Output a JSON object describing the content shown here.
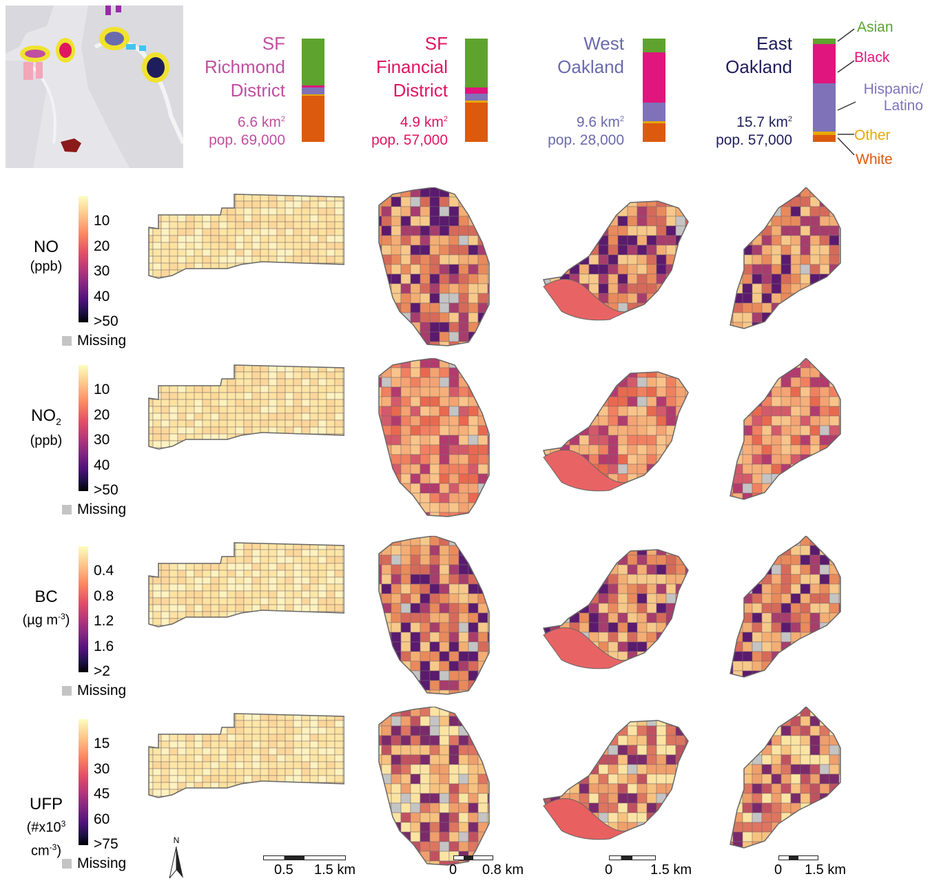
{
  "sites": [
    {
      "name_lines": [
        "SF",
        "Richmond",
        "District"
      ],
      "area": "6.6 km",
      "area_exp": "2",
      "population": "pop. 69,000",
      "color": "#c04fa0",
      "composition": {
        "asian": 0.45,
        "black": 0.02,
        "hispanic": 0.07,
        "other": 0.01,
        "white": 0.45
      }
    },
    {
      "name_lines": [
        "SF",
        "Financial",
        "District"
      ],
      "area": "4.9 km",
      "area_exp": "2",
      "population": "pop. 57,000",
      "color": "#e0155f",
      "composition": {
        "asian": 0.47,
        "black": 0.06,
        "hispanic": 0.07,
        "other": 0.02,
        "white": 0.38
      }
    },
    {
      "name_lines": [
        "West",
        "Oakland"
      ],
      "area": "9.6 km",
      "area_exp": "2",
      "population": "pop. 28,000",
      "color": "#6a6aae",
      "composition": {
        "asian": 0.13,
        "black": 0.49,
        "hispanic": 0.18,
        "other": 0.02,
        "white": 0.18
      }
    },
    {
      "name_lines": [
        "East",
        "Oakland"
      ],
      "area": "15.7 km",
      "area_exp": "2",
      "population": "pop. 57,000",
      "color": "#1e1e5c",
      "composition": {
        "asian": 0.05,
        "black": 0.38,
        "hispanic": 0.47,
        "other": 0.03,
        "white": 0.07
      }
    }
  ],
  "race_legend": {
    "asian": {
      "label": "Asian",
      "color": "#5ea32e"
    },
    "black": {
      "label": "Black",
      "color": "#e0157d"
    },
    "hispanic": {
      "label_lines": [
        "Hispanic/",
        "Latino"
      ],
      "color": "#7f72b8"
    },
    "other": {
      "label": "Other",
      "color": "#e8a800"
    },
    "white": {
      "label": "White",
      "color": "#dc5a0e"
    }
  },
  "pollutants": [
    {
      "name": "NO",
      "sub": "",
      "unit_lines": [
        "(ppb)"
      ],
      "ticks": [
        "10",
        "20",
        "30",
        "40",
        ">50"
      ],
      "missing": "Missing"
    },
    {
      "name": "NO",
      "sub": "2",
      "unit_lines": [
        "(ppb)"
      ],
      "ticks": [
        "10",
        "20",
        "30",
        "40",
        ">50"
      ],
      "missing": "Missing"
    },
    {
      "name": "BC",
      "sub": "",
      "unit_lines": [
        "(µg m",
        "-3",
        ")"
      ],
      "ticks": [
        "0.4",
        "0.8",
        "1.2",
        "1.6",
        ">2"
      ],
      "missing": "Missing"
    },
    {
      "name": "UFP",
      "sub": "",
      "unit_lines": [
        "(#x10",
        "3",
        "cm",
        "-3",
        ")"
      ],
      "ticks": [
        "15",
        "30",
        "45",
        "60",
        ">75"
      ],
      "missing": "Missing"
    }
  ],
  "north_label": "N",
  "scale_bars": [
    {
      "labels": [
        "0.5",
        "1.5 km"
      ]
    },
    {
      "labels": [
        "0",
        "0.8 km"
      ]
    },
    {
      "labels": [
        "0",
        "1.5 km"
      ]
    },
    {
      "labels": [
        "0",
        "1.5 km"
      ]
    }
  ],
  "colors": {
    "missing": "#c4c4c4",
    "map_bg": "#e6e6ea"
  }
}
